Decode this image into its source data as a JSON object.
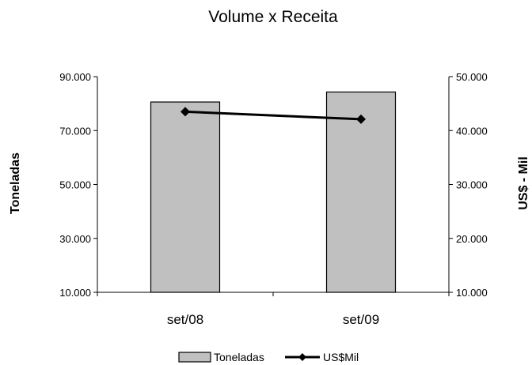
{
  "chart_data": {
    "type": "bar",
    "title": "Volume x Receita",
    "categories": [
      "set/08",
      "set/09"
    ],
    "y_left": {
      "label": "Toneladas",
      "ylim": [
        10000,
        90000
      ],
      "ticks": [
        10000,
        30000,
        50000,
        70000,
        90000
      ],
      "tick_labels": [
        "10.000",
        "30.000",
        "50.000",
        "70.000",
        "90.000"
      ]
    },
    "y_right": {
      "label": "US$ - Mil",
      "ylim": [
        10000,
        50000
      ],
      "ticks": [
        10000,
        20000,
        30000,
        40000,
        50000
      ],
      "tick_labels": [
        "10.000",
        "20.000",
        "30.000",
        "40.000",
        "50.000"
      ]
    },
    "series": [
      {
        "name": "Toneladas",
        "type": "bar",
        "axis": "left",
        "values": [
          80600,
          84300
        ],
        "color": "#c0c0c0"
      },
      {
        "name": "US$Mil",
        "type": "line",
        "axis": "right",
        "values": [
          43500,
          42100
        ],
        "color": "#000000"
      }
    ],
    "legend_position": "bottom",
    "grid": false
  }
}
